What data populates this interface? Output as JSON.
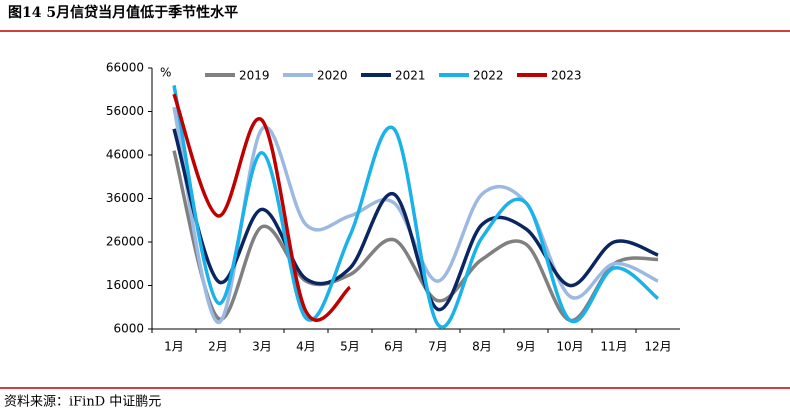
{
  "chart_data": {
    "type": "line",
    "title": "图14   5月信贷当月值低于季节性水平",
    "source": "资料来源：iFinD   中证鹏元",
    "y_unit": "%",
    "categories": [
      "1月",
      "2月",
      "3月",
      "4月",
      "5月",
      "6月",
      "7月",
      "8月",
      "9月",
      "10月",
      "11月",
      "12月"
    ],
    "series": [
      {
        "name": "2019",
        "color": "#808080",
        "values": [
          47000,
          8500,
          29500,
          17000,
          18500,
          26500,
          12500,
          22000,
          25500,
          8000,
          21000,
          22000
        ]
      },
      {
        "name": "2020",
        "color": "#9db9e2",
        "values": [
          57000,
          7500,
          52000,
          30000,
          32000,
          35000,
          17000,
          37000,
          35000,
          13500,
          21000,
          17000
        ]
      },
      {
        "name": "2021",
        "color": "#0b2560",
        "values": [
          52000,
          17000,
          33500,
          17500,
          20000,
          37000,
          10500,
          30000,
          29000,
          16000,
          26000,
          23000
        ]
      },
      {
        "name": "2022",
        "color": "#1ab2e8",
        "values": [
          62000,
          12000,
          46500,
          8500,
          27500,
          52000,
          7000,
          27000,
          35000,
          8000,
          20000,
          13000
        ]
      },
      {
        "name": "2023",
        "color": "#c00000",
        "values": [
          60000,
          32000,
          54000,
          10000,
          15600,
          null,
          null,
          null,
          null,
          null,
          null,
          null
        ]
      }
    ],
    "ylim": [
      6000,
      66000
    ],
    "yticks": [
      6000,
      16000,
      26000,
      36000,
      46000,
      56000,
      66000
    ],
    "legend": "top"
  }
}
